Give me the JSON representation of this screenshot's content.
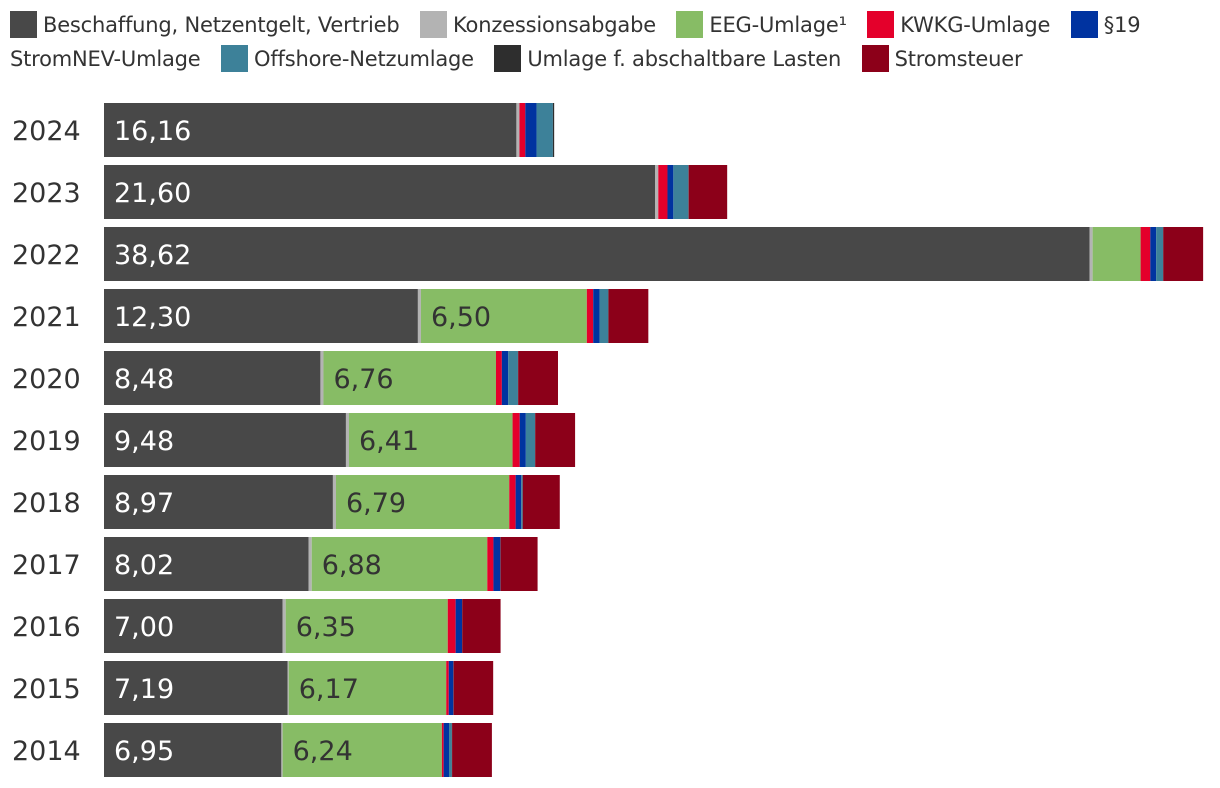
{
  "chart_data": {
    "type": "bar",
    "orientation": "horizontal",
    "stacked": true,
    "legend_position": "top",
    "xlim": [
      0,
      43.3
    ],
    "categories": [
      "2024",
      "2023",
      "2022",
      "2021",
      "2020",
      "2019",
      "2018",
      "2017",
      "2016",
      "2015",
      "2014"
    ],
    "series": [
      {
        "name": "Beschaffung, Netzentgelt, Vertrieb",
        "color": "#484848",
        "values": [
          16.16,
          21.6,
          38.62,
          12.3,
          8.48,
          9.48,
          8.97,
          8.02,
          7.0,
          7.19,
          6.95
        ],
        "labels": [
          "16,16",
          "21,60",
          "38,62",
          "12,30",
          "8,48",
          "9,48",
          "8,97",
          "8,02",
          "7,00",
          "7,19",
          "6,95"
        ]
      },
      {
        "name": "Konzessionsabgabe",
        "color": "#b3b3b3",
        "values": [
          0.12,
          0.12,
          0.12,
          0.12,
          0.12,
          0.12,
          0.12,
          0.12,
          0.12,
          0.05,
          0.05
        ]
      },
      {
        "name": "EEG-Umlage¹",
        "color": "#87bc65",
        "values": [
          0,
          0,
          1.88,
          6.5,
          6.76,
          6.41,
          6.79,
          6.88,
          6.35,
          6.17,
          6.24
        ],
        "labels": [
          "",
          "",
          "",
          "6,50",
          "6,76",
          "6,41",
          "6,79",
          "6,88",
          "6,35",
          "6,17",
          "6,24"
        ]
      },
      {
        "name": "KWKG-Umlage",
        "color": "#e4002b",
        "values": [
          0.23,
          0.36,
          0.38,
          0.25,
          0.23,
          0.28,
          0.25,
          0.24,
          0.31,
          0.1,
          0.07
        ]
      },
      {
        "name": "§19 StromNEV-Umlage",
        "color": "#0033a0",
        "values": [
          0.44,
          0.23,
          0.23,
          0.25,
          0.25,
          0.24,
          0.22,
          0.27,
          0.25,
          0.18,
          0.21
        ]
      },
      {
        "name": "Offshore-Netzumlage",
        "color": "#3d8199",
        "values": [
          0.64,
          0.59,
          0.27,
          0.34,
          0.38,
          0.36,
          0.05,
          0,
          0,
          0,
          0.11
        ]
      },
      {
        "name": "Umlage f. abschaltbare Lasten",
        "color": "#2e2e2e",
        "values": [
          0.05,
          0.01,
          0.01,
          0.01,
          0.01,
          0.01,
          0.01,
          0.01,
          0.01,
          0.01,
          0.01
        ]
      },
      {
        "name": "Stromsteuer",
        "color": "#8c0019",
        "values": [
          0,
          1.51,
          1.56,
          1.56,
          1.56,
          1.56,
          1.45,
          1.45,
          1.5,
          1.55,
          1.56
        ]
      }
    ]
  }
}
